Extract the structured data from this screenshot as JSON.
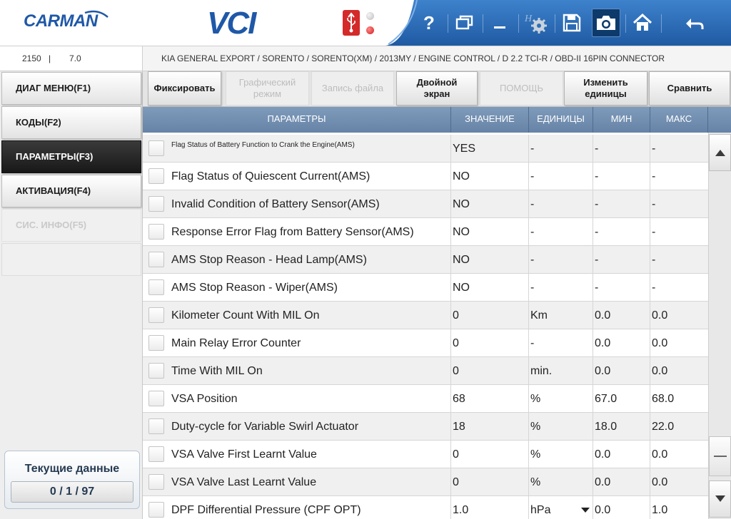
{
  "header": {
    "logo_text": "CARMAN",
    "product_text": "VCI",
    "colors": {
      "brand_blue": "#1f58a8",
      "toolbar_blue": "#2f6fbb",
      "usb_red": "#d42a2a"
    },
    "toolbar_icons": [
      "help-icon",
      "window-icon",
      "minimize-icon",
      "settings-icon",
      "save-icon",
      "camera-icon",
      "home-icon",
      "back-icon"
    ]
  },
  "info": {
    "vci_id": "2150",
    "vci_sep": "|",
    "vci_version": "7.0",
    "vehicle_path": "KIA GENERAL EXPORT / SORENTO / SORENTO(XM) / 2013MY / ENGINE CONTROL / D 2.2 TCI-R / OBD-II 16PIN CONNECTOR"
  },
  "sidebar": {
    "items": [
      {
        "label": "ДИАГ МЕНЮ(F1)",
        "state": "normal"
      },
      {
        "label": "КОДЫ(F2)",
        "state": "normal"
      },
      {
        "label": "ПАРАМЕТРЫ(F3)",
        "state": "active"
      },
      {
        "label": "АКТИВАЦИЯ(F4)",
        "state": "normal"
      },
      {
        "label": "СИС. ИНФО(F5)",
        "state": "disabled"
      }
    ],
    "current_data": {
      "title": "Текущие данные",
      "counter": "0 / 1 / 97"
    }
  },
  "functions": {
    "fix": "Фиксировать",
    "graph_mode": "Графический\nрежим",
    "record_file": "Запись файла",
    "dual_screen": "Двойной\nэкран",
    "help": "ПОМОЩЬ",
    "change_units": "Изменить\nединицы",
    "compare": "Сравнить"
  },
  "table": {
    "headers": {
      "param": "ПАРАМЕТРЫ",
      "value": "ЗНАЧЕНИЕ",
      "units": "ЕДИНИЦЫ",
      "min": "МИН",
      "max": "МАКС"
    },
    "rows": [
      {
        "name": "Flag Status of Battery Function to Crank the Engine(AMS)",
        "value": "YES",
        "unit": "-",
        "min": "-",
        "max": "-"
      },
      {
        "name": "Flag Status of Quiescent Current(AMS)",
        "value": "NO",
        "unit": "-",
        "min": "-",
        "max": "-"
      },
      {
        "name": "Invalid Condition of Battery Sensor(AMS)",
        "value": "NO",
        "unit": "-",
        "min": "-",
        "max": "-"
      },
      {
        "name": "Response Error Flag from Battery Sensor(AMS)",
        "value": "NO",
        "unit": "-",
        "min": "-",
        "max": "-"
      },
      {
        "name": "AMS Stop Reason - Head Lamp(AMS)",
        "value": "NO",
        "unit": "-",
        "min": "-",
        "max": "-"
      },
      {
        "name": "AMS Stop Reason - Wiper(AMS)",
        "value": "NO",
        "unit": "-",
        "min": "-",
        "max": "-"
      },
      {
        "name": "Kilometer Count With MIL On",
        "value": "0",
        "unit": "Km",
        "min": "0.0",
        "max": "0.0"
      },
      {
        "name": "Main Relay Error Counter",
        "value": "0",
        "unit": "-",
        "min": "0.0",
        "max": "0.0"
      },
      {
        "name": "Time With MIL On",
        "value": "0",
        "unit": "min.",
        "min": "0.0",
        "max": "0.0"
      },
      {
        "name": "VSA Position",
        "value": "68",
        "unit": "%",
        "min": "67.0",
        "max": "68.0"
      },
      {
        "name": "Duty-cycle for Variable Swirl Actuator",
        "value": "18",
        "unit": "%",
        "min": "18.0",
        "max": "22.0"
      },
      {
        "name": "VSA Valve First Learnt Value",
        "value": "0",
        "unit": "%",
        "min": "0.0",
        "max": "0.0"
      },
      {
        "name": "VSA Valve Last Learnt Value",
        "value": "0",
        "unit": "%",
        "min": "0.0",
        "max": "0.0"
      },
      {
        "name": "DPF Differential Pressure (CPF OPT)",
        "value": "1.0",
        "unit": "hPa",
        "min": "0.0",
        "max": "1.0"
      }
    ]
  }
}
